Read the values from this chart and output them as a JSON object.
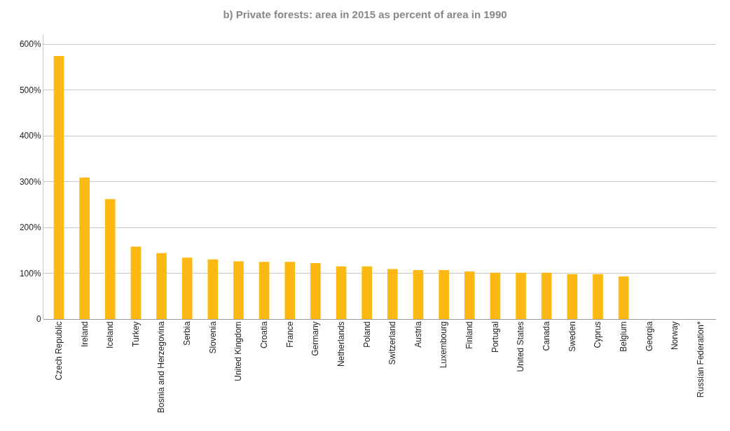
{
  "chart_data": {
    "type": "bar",
    "title": "b) Private forests: area in 2015 as percent of area in 1990",
    "categories": [
      "Czech Republic",
      "Ireland",
      "Iceland",
      "Turkey",
      "Bosnia and Herzegovina",
      "Serbia",
      "Slovenia",
      "United Kingdom",
      "Croatia",
      "France",
      "Germany",
      "Netherlands",
      "Poland",
      "Switzerland",
      "Austria",
      "Luxembourg",
      "Finland",
      "Portugal",
      "United States",
      "Canada",
      "Sweden",
      "Cyprus",
      "Belgium",
      "Georgia",
      "Norway",
      "Russian Federation*"
    ],
    "values": [
      574,
      309,
      262,
      158,
      144,
      134,
      130,
      126,
      125,
      125,
      122,
      115,
      115,
      109,
      107,
      107,
      104,
      101,
      101,
      101,
      98,
      98,
      93,
      null,
      null,
      null
    ],
    "color": "#fdb913",
    "ylim": [
      0,
      620
    ],
    "yticks": [
      {
        "value": 0,
        "label": "0"
      },
      {
        "value": 100,
        "label": "100%"
      },
      {
        "value": 200,
        "label": "200%"
      },
      {
        "value": 300,
        "label": "300%"
      },
      {
        "value": 400,
        "label": "400%"
      },
      {
        "value": 500,
        "label": "500%"
      },
      {
        "value": 600,
        "label": "600%"
      }
    ],
    "grid": "y"
  }
}
